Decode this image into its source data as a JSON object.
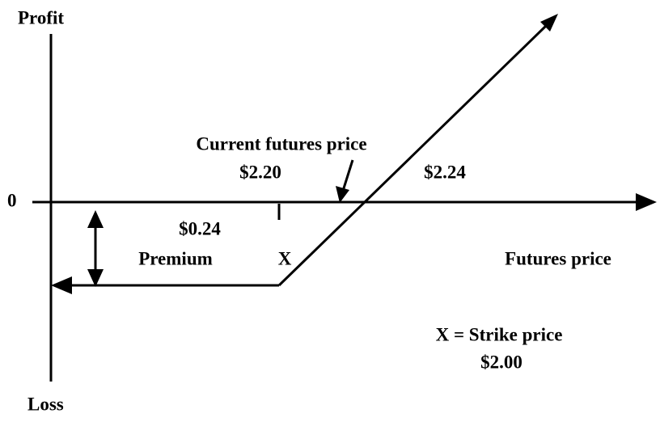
{
  "axes": {
    "y_top": "Profit",
    "y_bottom": "Loss",
    "origin": "0",
    "x": "Futures price"
  },
  "labels": {
    "current_price_title": "Current futures price",
    "current_price": "$2.20",
    "breakeven": "$2.24",
    "premium_value": "$0.24",
    "premium": "Premium",
    "strike_marker": "X",
    "strike_title": "X = Strike price",
    "strike": "$2.00"
  }
}
